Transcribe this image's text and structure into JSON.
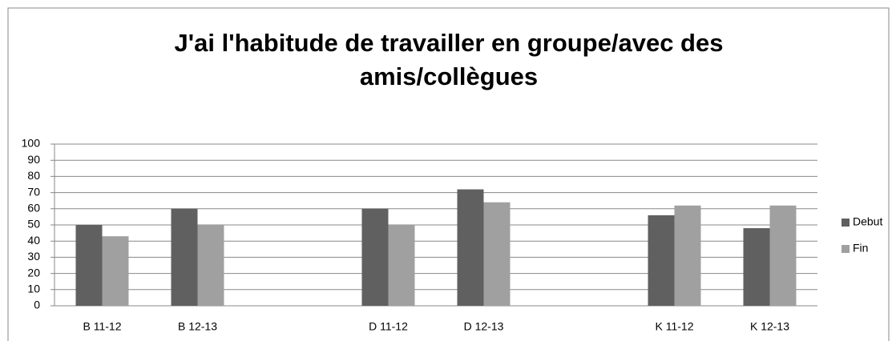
{
  "chart_data": {
    "type": "bar",
    "title": [
      "J'ai l'habitude de travailler en groupe/avec des",
      "amis/collègues"
    ],
    "categories": [
      "B 11-12",
      "B 12-13",
      null,
      "D 11-12",
      "D 12-13",
      null,
      "K 11-12",
      "K 12-13"
    ],
    "series": [
      {
        "name": "Debut",
        "color": "#606060",
        "values": [
          50,
          60,
          null,
          60,
          72,
          null,
          56,
          48
        ]
      },
      {
        "name": "Fin",
        "color": "#a0a0a0",
        "values": [
          43,
          50,
          null,
          50,
          64,
          null,
          62,
          62
        ]
      }
    ],
    "ylim": [
      0,
      100
    ],
    "yticks": [
      0,
      10,
      20,
      30,
      40,
      50,
      60,
      70,
      80,
      90,
      100
    ],
    "grid": true,
    "legend": "right"
  }
}
